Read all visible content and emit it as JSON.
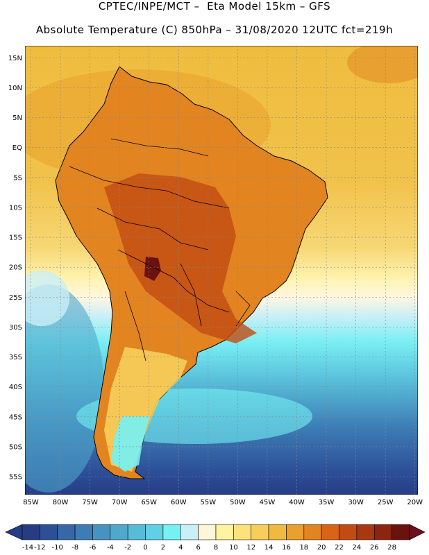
{
  "header": {
    "line1": "CPTEC/INPE/MCT –  Eta Model 15km – GFS",
    "line2": "Absolute Temperature (C) 850hPa – 31/08/2020 12UTC fct=219h"
  },
  "map": {
    "lat_labels": [
      "15N",
      "10N",
      "5N",
      "EQ",
      "5S",
      "10S",
      "15S",
      "20S",
      "25S",
      "30S",
      "35S",
      "40S",
      "45S",
      "50S",
      "55S"
    ],
    "lon_labels": [
      "85W",
      "80W",
      "75W",
      "70W",
      "65W",
      "60W",
      "55W",
      "50W",
      "45W",
      "40W",
      "35W",
      "30W",
      "25W",
      "20W"
    ],
    "bounds": {
      "lon": [
        -86,
        -19.5
      ],
      "lat": [
        -58,
        17
      ]
    }
  },
  "colorbar": {
    "ticks": [
      "-14",
      "-12",
      "-10",
      "-8",
      "-6",
      "-4",
      "-2",
      "0",
      "2",
      "4",
      "6",
      "8",
      "10",
      "12",
      "14",
      "16",
      "18",
      "20",
      "22",
      "24",
      "26",
      "28"
    ],
    "colors": [
      "#263d86",
      "#2c4f98",
      "#3667a7",
      "#3d7db5",
      "#4792c0",
      "#4fa7cc",
      "#57bcd8",
      "#5fd1e4",
      "#75f1f4",
      "#c9eff7",
      "#fff6d9",
      "#fff2a0",
      "#fde27c",
      "#f7ce5a",
      "#efba3d",
      "#e9a02c",
      "#e28420",
      "#d96418",
      "#c24b13",
      "#a8380f",
      "#8c250d",
      "#6b120f"
    ],
    "end_low": "#263d86",
    "end_high": "#6b0e1d"
  }
}
